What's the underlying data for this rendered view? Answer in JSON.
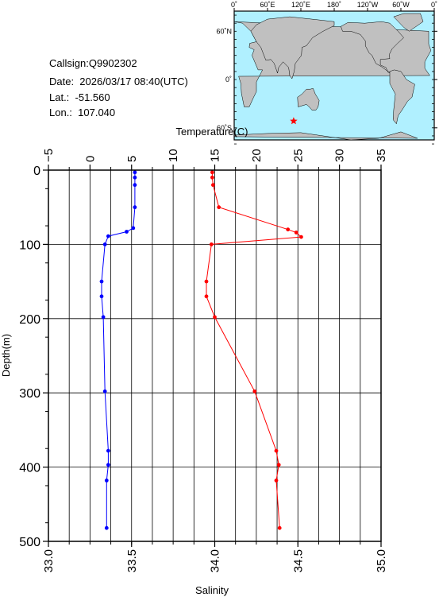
{
  "station": {
    "callsign": "Callsign:Q9902302",
    "date": "Date:  2026/03/17 08:40(UTC)",
    "lat": "Lat.:  -51.560",
    "lon": "Lon.:  107.040"
  },
  "map": {
    "lon_ticks": [
      "0˚",
      "60˚E",
      "120˚E",
      "180˚",
      "120˚W",
      "60˚W",
      "0˚"
    ],
    "lat_ticks": [
      "60˚N",
      "0˚",
      "60˚S"
    ],
    "marker": {
      "lon": 107.04,
      "lat": -51.56
    },
    "colors": {
      "ocean": "#b0f0ff",
      "land": "#c0c0c0",
      "marker": "#ff0000"
    }
  },
  "chart_data": {
    "type": "line",
    "xlabel_top": "Temperature(C)",
    "xlabel_bottom": "Salinity",
    "ylabel": "Depth(m)",
    "temperature_axis": {
      "range": [
        -5,
        35
      ],
      "ticks": [
        "−5",
        "0",
        "5",
        "10",
        "15",
        "20",
        "25",
        "30",
        "35"
      ]
    },
    "salinity_axis": {
      "range": [
        33.0,
        35.0
      ],
      "ticks": [
        "33.0",
        "33.5",
        "34.0",
        "34.5",
        "35.0"
      ]
    },
    "depth_axis": {
      "range": [
        0,
        500
      ],
      "ticks": [
        "0",
        "100",
        "200",
        "300",
        "400",
        "500"
      ]
    },
    "grid": true,
    "series": [
      {
        "color": "#ff0000",
        "axis": "temperature",
        "points": [
          {
            "depth": 3,
            "value": 14.7
          },
          {
            "depth": 10,
            "value": 14.7
          },
          {
            "depth": 20,
            "value": 14.8
          },
          {
            "depth": 50,
            "value": 15.5
          },
          {
            "depth": 80,
            "value": 23.8
          },
          {
            "depth": 84,
            "value": 24.8
          },
          {
            "depth": 90,
            "value": 25.4
          },
          {
            "depth": 100,
            "value": 14.6
          },
          {
            "depth": 150,
            "value": 14.0
          },
          {
            "depth": 170,
            "value": 14.0
          },
          {
            "depth": 198,
            "value": 15.0
          },
          {
            "depth": 298,
            "value": 19.8
          },
          {
            "depth": 378,
            "value": 22.4
          },
          {
            "depth": 397,
            "value": 22.7
          },
          {
            "depth": 418,
            "value": 22.4
          },
          {
            "depth": 482,
            "value": 22.8
          }
        ]
      },
      {
        "color": "#0000ff",
        "axis": "salinity",
        "points": [
          {
            "depth": 3,
            "value": 33.52
          },
          {
            "depth": 10,
            "value": 33.52
          },
          {
            "depth": 20,
            "value": 33.52
          },
          {
            "depth": 50,
            "value": 33.52
          },
          {
            "depth": 78,
            "value": 33.51
          },
          {
            "depth": 83,
            "value": 33.47
          },
          {
            "depth": 89,
            "value": 33.36
          },
          {
            "depth": 100,
            "value": 33.34
          },
          {
            "depth": 150,
            "value": 33.32
          },
          {
            "depth": 170,
            "value": 33.32
          },
          {
            "depth": 198,
            "value": 33.33
          },
          {
            "depth": 298,
            "value": 33.34
          },
          {
            "depth": 378,
            "value": 33.36
          },
          {
            "depth": 397,
            "value": 33.36
          },
          {
            "depth": 418,
            "value": 33.35
          },
          {
            "depth": 482,
            "value": 33.35
          }
        ]
      }
    ]
  }
}
